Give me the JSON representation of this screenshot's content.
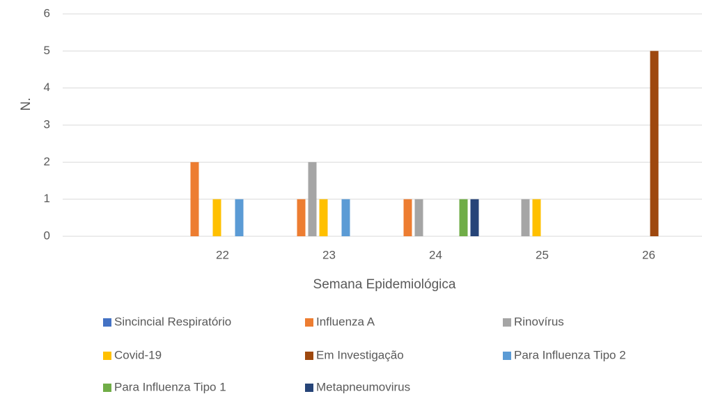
{
  "chart_data": {
    "type": "bar",
    "x_label": "Semana Epidemiológica",
    "y_label": "N.",
    "categories": [
      null,
      "22",
      "23",
      "24",
      "25",
      "26"
    ],
    "series": [
      {
        "name": "Sincincial Respiratório",
        "color": "#4472c4",
        "values": [
          0,
          0,
          0,
          0,
          0,
          0
        ]
      },
      {
        "name": "Influenza A",
        "color": "#ed7d31",
        "values": [
          0,
          2,
          1,
          1,
          0,
          0
        ]
      },
      {
        "name": "Rinovírus",
        "color": "#a5a5a5",
        "values": [
          0,
          0,
          2,
          1,
          1,
          0
        ]
      },
      {
        "name": "Covid-19",
        "color": "#ffc000",
        "values": [
          0,
          1,
          1,
          0,
          1,
          0
        ]
      },
      {
        "name": "Em Investigação",
        "color": "#9e480e",
        "values": [
          0,
          0,
          0,
          0,
          0,
          5
        ]
      },
      {
        "name": "Para Influenza Tipo 2",
        "color": "#5b9bd5",
        "values": [
          0,
          1,
          1,
          0,
          0,
          0
        ]
      },
      {
        "name": "Para Influenza Tipo 1",
        "color": "#70ad47",
        "values": [
          0,
          0,
          0,
          1,
          0,
          0
        ]
      },
      {
        "name": "Metapneumovirus",
        "color": "#264478",
        "values": [
          0,
          0,
          0,
          1,
          0,
          0
        ]
      }
    ],
    "ylim": [
      0,
      6
    ],
    "yticks": [
      0,
      1,
      2,
      3,
      4,
      5,
      6
    ],
    "grid": true,
    "legend": "bottom"
  }
}
